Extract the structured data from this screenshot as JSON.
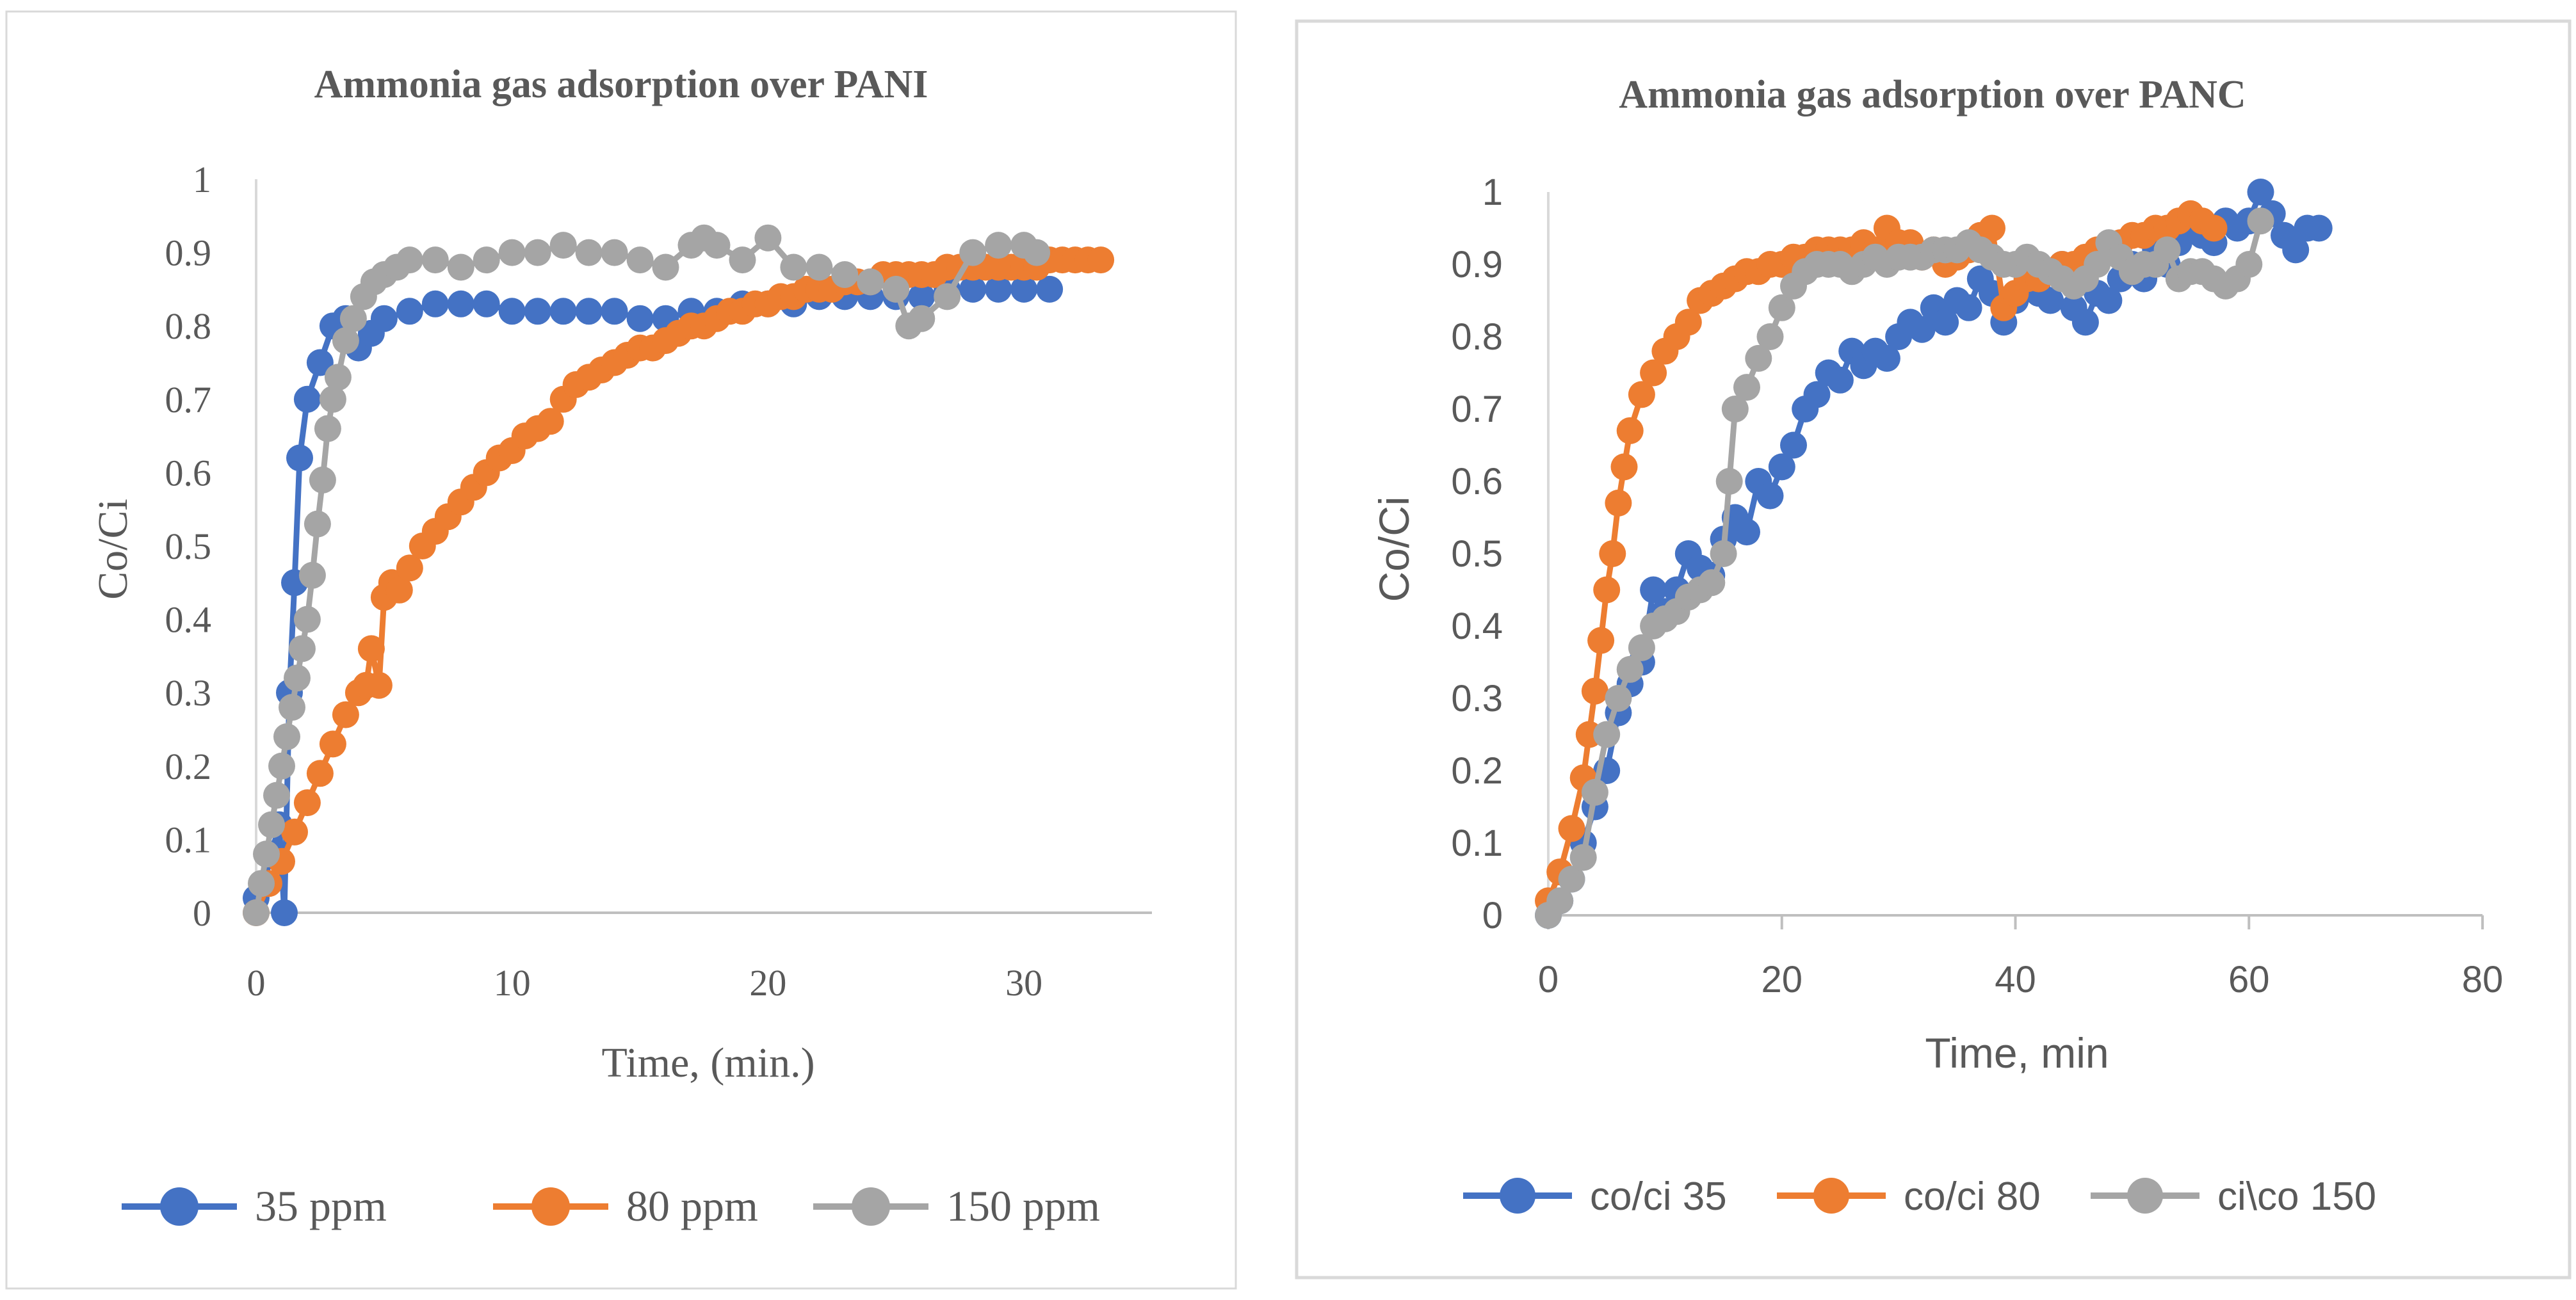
{
  "chart_data": [
    {
      "type": "scatter",
      "title": "Ammonia gas adsorption over PANI",
      "xlabel": "Time, (min.)",
      "ylabel": "Co/Ci",
      "xlim": [
        0,
        35
      ],
      "ylim": [
        0,
        1
      ],
      "xticks": [
        "0",
        "10",
        "20",
        "30"
      ],
      "yticks": [
        "0",
        "0.1",
        "0.2",
        "0.3",
        "0.4",
        "0.5",
        "0.6",
        "0.7",
        "0.8",
        "0.9",
        "1"
      ],
      "grid": false,
      "legend_position": "bottom",
      "series": [
        {
          "name": "35 ppm",
          "color": "#4472c4",
          "x": [
            0,
            0.3,
            0.6,
            0.9,
            1.1,
            1.3,
            1.5,
            1.7,
            2.0,
            2.5,
            3.0,
            3.5,
            4.0,
            4.5,
            5,
            6,
            7,
            8,
            9,
            10,
            11,
            12,
            13,
            14,
            15,
            16,
            17,
            18,
            19,
            20,
            21,
            22,
            23,
            24,
            25,
            26,
            27,
            28,
            29,
            30,
            31
          ],
          "values": [
            0.02,
            0.04,
            0.08,
            0.12,
            0.0,
            0.3,
            0.45,
            0.62,
            0.7,
            0.75,
            0.8,
            0.81,
            0.77,
            0.79,
            0.81,
            0.82,
            0.83,
            0.83,
            0.83,
            0.82,
            0.82,
            0.82,
            0.82,
            0.82,
            0.81,
            0.81,
            0.82,
            0.82,
            0.83,
            0.83,
            0.83,
            0.84,
            0.84,
            0.84,
            0.84,
            0.84,
            0.85,
            0.85,
            0.85,
            0.85,
            0.85
          ]
        },
        {
          "name": "80 ppm",
          "color": "#ed7d31",
          "x": [
            0,
            0.5,
            1,
            1.5,
            2,
            2.5,
            3,
            3.5,
            4,
            4.3,
            4.5,
            4.8,
            5,
            5.3,
            5.6,
            6,
            6.5,
            7,
            7.5,
            8,
            8.5,
            9,
            9.5,
            10,
            10.5,
            11,
            11.5,
            12,
            12.5,
            13,
            13.5,
            14,
            14.5,
            15,
            15.5,
            16,
            16.5,
            17,
            17.5,
            18,
            18.5,
            19,
            19.5,
            20,
            20.5,
            21,
            21.5,
            22,
            22.5,
            23,
            23.5,
            24,
            24.5,
            25,
            25.5,
            26,
            26.5,
            27,
            27.5,
            28,
            28.5,
            29,
            29.5,
            30,
            30.5,
            31,
            31.5,
            32,
            32.5,
            33
          ],
          "values": [
            0.0,
            0.04,
            0.07,
            0.11,
            0.15,
            0.19,
            0.23,
            0.27,
            0.3,
            0.31,
            0.36,
            0.31,
            0.43,
            0.45,
            0.44,
            0.47,
            0.5,
            0.52,
            0.54,
            0.56,
            0.58,
            0.6,
            0.62,
            0.63,
            0.65,
            0.66,
            0.67,
            0.7,
            0.72,
            0.73,
            0.74,
            0.75,
            0.76,
            0.77,
            0.77,
            0.78,
            0.79,
            0.8,
            0.8,
            0.81,
            0.82,
            0.82,
            0.83,
            0.83,
            0.84,
            0.84,
            0.85,
            0.85,
            0.85,
            0.86,
            0.86,
            0.86,
            0.87,
            0.87,
            0.87,
            0.87,
            0.87,
            0.88,
            0.88,
            0.88,
            0.88,
            0.88,
            0.88,
            0.88,
            0.88,
            0.89,
            0.89,
            0.89,
            0.89,
            0.89
          ]
        },
        {
          "name": "150 ppm",
          "color": "#a5a5a5",
          "x": [
            0,
            0.2,
            0.4,
            0.6,
            0.8,
            1.0,
            1.2,
            1.4,
            1.6,
            1.8,
            2.0,
            2.2,
            2.4,
            2.6,
            2.8,
            3.0,
            3.2,
            3.5,
            3.8,
            4.2,
            4.6,
            5,
            5.5,
            6,
            7,
            8,
            9,
            10,
            11,
            12,
            13,
            14,
            15,
            16,
            17,
            17.5,
            18,
            19,
            20,
            21,
            22,
            23,
            24,
            25,
            25.5,
            26,
            27,
            28,
            29,
            30,
            30.5
          ],
          "values": [
            0.0,
            0.04,
            0.08,
            0.12,
            0.16,
            0.2,
            0.24,
            0.28,
            0.32,
            0.36,
            0.4,
            0.46,
            0.53,
            0.59,
            0.66,
            0.7,
            0.73,
            0.78,
            0.81,
            0.84,
            0.86,
            0.87,
            0.88,
            0.89,
            0.89,
            0.88,
            0.89,
            0.9,
            0.9,
            0.91,
            0.9,
            0.9,
            0.89,
            0.88,
            0.91,
            0.92,
            0.91,
            0.89,
            0.92,
            0.88,
            0.88,
            0.87,
            0.86,
            0.85,
            0.8,
            0.81,
            0.84,
            0.9,
            0.91,
            0.91,
            0.9
          ]
        }
      ]
    },
    {
      "type": "scatter",
      "title": "Ammonia gas adsorption over PANC",
      "xlabel": "Time, min",
      "ylabel": "Co/Ci",
      "xlim": [
        0,
        80
      ],
      "ylim": [
        0,
        1
      ],
      "xticks": [
        "0",
        "20",
        "40",
        "60",
        "80"
      ],
      "yticks": [
        "0",
        "0.1",
        "0.2",
        "0.3",
        "0.4",
        "0.5",
        "0.6",
        "0.7",
        "0.8",
        "0.9",
        "1"
      ],
      "grid": false,
      "legend_position": "bottom",
      "series": [
        {
          "name": "co/ci 35",
          "color": "#4472c4",
          "x": [
            0,
            1,
            2,
            3,
            4,
            5,
            6,
            7,
            8,
            9,
            10,
            11,
            12,
            13,
            14,
            15,
            16,
            17,
            18,
            19,
            20,
            21,
            22,
            23,
            24,
            25,
            26,
            27,
            28,
            29,
            30,
            31,
            32,
            33,
            34,
            35,
            36,
            37,
            38,
            39,
            40,
            41,
            42,
            43,
            44,
            45,
            46,
            47,
            48,
            49,
            50,
            51,
            52,
            53,
            54,
            55,
            56,
            57,
            58,
            59,
            60,
            61,
            62,
            63,
            64,
            65,
            66
          ],
          "values": [
            0.0,
            0.02,
            0.05,
            0.1,
            0.15,
            0.2,
            0.28,
            0.32,
            0.35,
            0.45,
            0.42,
            0.45,
            0.5,
            0.48,
            0.47,
            0.52,
            0.55,
            0.53,
            0.6,
            0.58,
            0.62,
            0.65,
            0.7,
            0.72,
            0.75,
            0.74,
            0.78,
            0.76,
            0.78,
            0.77,
            0.8,
            0.82,
            0.81,
            0.84,
            0.82,
            0.85,
            0.84,
            0.88,
            0.86,
            0.82,
            0.85,
            0.88,
            0.86,
            0.85,
            0.9,
            0.84,
            0.82,
            0.86,
            0.85,
            0.88,
            0.9,
            0.88,
            0.92,
            0.9,
            0.93,
            0.95,
            0.94,
            0.93,
            0.96,
            0.95,
            0.96,
            1.0,
            0.97,
            0.94,
            0.92,
            0.95,
            0.95
          ]
        },
        {
          "name": "co/ci 80",
          "color": "#ed7d31",
          "x": [
            0,
            1,
            2,
            3,
            3.5,
            4,
            4.5,
            5,
            5.5,
            6,
            6.5,
            7,
            8,
            9,
            10,
            11,
            12,
            13,
            14,
            15,
            16,
            17,
            18,
            19,
            20,
            21,
            22,
            23,
            24,
            25,
            26,
            27,
            28,
            29,
            30,
            31,
            32,
            33,
            34,
            35,
            36,
            37,
            38,
            39,
            40,
            41,
            42,
            43,
            44,
            45,
            46,
            47,
            48,
            49,
            50,
            51,
            52,
            53,
            54,
            55,
            56,
            57
          ],
          "values": [
            0.02,
            0.06,
            0.12,
            0.19,
            0.25,
            0.31,
            0.38,
            0.45,
            0.5,
            0.57,
            0.62,
            0.67,
            0.72,
            0.75,
            0.78,
            0.8,
            0.82,
            0.85,
            0.86,
            0.87,
            0.88,
            0.89,
            0.89,
            0.9,
            0.9,
            0.91,
            0.91,
            0.92,
            0.92,
            0.92,
            0.92,
            0.93,
            0.92,
            0.95,
            0.93,
            0.93,
            0.91,
            0.92,
            0.9,
            0.91,
            0.92,
            0.94,
            0.95,
            0.84,
            0.86,
            0.88,
            0.88,
            0.89,
            0.9,
            0.9,
            0.91,
            0.92,
            0.92,
            0.93,
            0.94,
            0.94,
            0.95,
            0.95,
            0.96,
            0.97,
            0.96,
            0.95
          ]
        },
        {
          "name": "ci\\co 150",
          "color": "#a5a5a5",
          "x": [
            0,
            1,
            2,
            3,
            4,
            5,
            6,
            7,
            8,
            9,
            10,
            11,
            12,
            13,
            14,
            15,
            15.5,
            16,
            17,
            18,
            19,
            20,
            21,
            22,
            23,
            24,
            25,
            26,
            27,
            28,
            29,
            30,
            31,
            32,
            33,
            34,
            35,
            36,
            37,
            38,
            39,
            40,
            41,
            42,
            43,
            44,
            45,
            46,
            47,
            48,
            49,
            50,
            51,
            52,
            53,
            54,
            55,
            56,
            57,
            58,
            59,
            60,
            61
          ],
          "values": [
            0.0,
            0.02,
            0.05,
            0.08,
            0.17,
            0.25,
            0.3,
            0.34,
            0.37,
            0.4,
            0.41,
            0.42,
            0.44,
            0.45,
            0.46,
            0.5,
            0.6,
            0.7,
            0.73,
            0.77,
            0.8,
            0.84,
            0.87,
            0.89,
            0.9,
            0.9,
            0.9,
            0.89,
            0.9,
            0.91,
            0.9,
            0.91,
            0.91,
            0.91,
            0.92,
            0.92,
            0.92,
            0.93,
            0.92,
            0.91,
            0.9,
            0.9,
            0.91,
            0.9,
            0.89,
            0.88,
            0.87,
            0.88,
            0.9,
            0.93,
            0.91,
            0.89,
            0.9,
            0.9,
            0.92,
            0.88,
            0.89,
            0.89,
            0.88,
            0.87,
            0.88,
            0.9,
            0.96
          ]
        }
      ]
    }
  ]
}
